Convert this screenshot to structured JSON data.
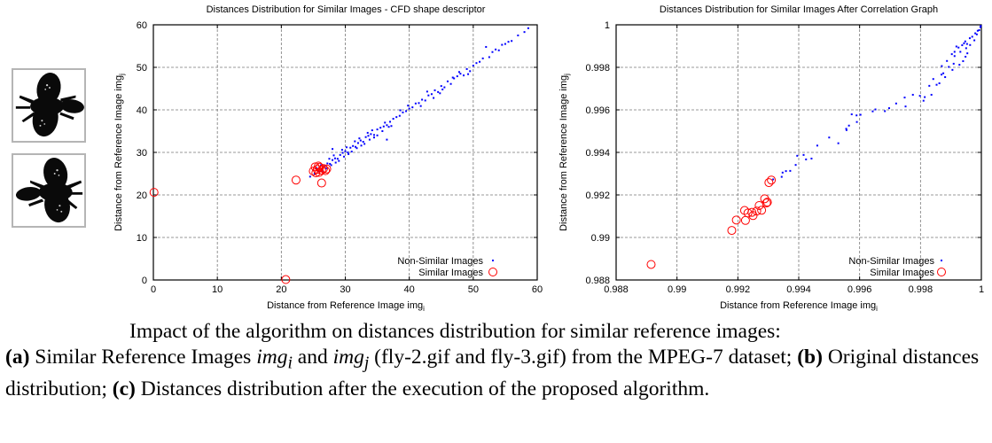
{
  "thumbnails": [
    {
      "label": "fly-2.gif",
      "icon": "fly-silhouette-icon"
    },
    {
      "label": "fly-3.gif",
      "icon": "fly-silhouette-icon"
    }
  ],
  "caption": {
    "line1": "Impact of the algorithm on distances distribution for similar reference images:",
    "a_tag": "(a)",
    "a_text_1": " Similar Reference Images ",
    "img_i": "img",
    "sub_i": "i",
    "and": " and ",
    "img_j": "img",
    "sub_j": "j",
    "a_text_2": " (fly-2.gif and fly-3.gif) from the MPEG-7 dataset; ",
    "b_tag": "(b)",
    "b_text": " Original distances distribution; ",
    "c_tag": "(c)",
    "c_text": " Distances distribution after the execution of the proposed algorithm."
  },
  "chart_data": [
    {
      "type": "scatter",
      "title": "Distances Distribution for Similar Images - CFD shape descriptor",
      "xlabel": "Distance from Reference Image img",
      "xlabel_sub": "i",
      "ylabel": "Distance from Reference Image img",
      "ylabel_sub": "j",
      "xlim": [
        0,
        60
      ],
      "ylim": [
        0,
        60
      ],
      "xticks": [
        "0",
        "10",
        "20",
        "30",
        "40",
        "50",
        "60"
      ],
      "yticks": [
        "0",
        "10",
        "20",
        "30",
        "40",
        "50",
        "60"
      ],
      "xtick_values": [
        0,
        10,
        20,
        30,
        40,
        50,
        60
      ],
      "ytick_values": [
        0,
        10,
        20,
        30,
        40,
        50,
        60
      ],
      "grid": true,
      "legend_position": "bottom-right",
      "series": [
        {
          "name": "Non-Similar Images",
          "marker": "dot",
          "color": "#0000ff",
          "points": [
            [
              24.5,
              24.3
            ],
            [
              25.2,
              25.0
            ],
            [
              25.8,
              25.6
            ],
            [
              26.3,
              26.0
            ],
            [
              26.8,
              26.9
            ],
            [
              27.2,
              27.4
            ],
            [
              27.6,
              27.3
            ],
            [
              28.0,
              28.2
            ],
            [
              28.4,
              28.6
            ],
            [
              28.8,
              28.5
            ],
            [
              29.2,
              29.4
            ],
            [
              29.6,
              29.9
            ],
            [
              30.0,
              30.3
            ],
            [
              30.4,
              30.0
            ],
            [
              30.8,
              31.1
            ],
            [
              31.2,
              31.5
            ],
            [
              31.6,
              31.3
            ],
            [
              32.0,
              32.2
            ],
            [
              32.4,
              32.8
            ],
            [
              32.8,
              32.5
            ],
            [
              33.2,
              33.6
            ],
            [
              33.6,
              33.9
            ],
            [
              34.0,
              34.3
            ],
            [
              34.5,
              34.1
            ],
            [
              35.0,
              35.4
            ],
            [
              35.5,
              35.8
            ],
            [
              36.0,
              36.1
            ],
            [
              36.5,
              36.4
            ],
            [
              37.0,
              37.2
            ],
            [
              37.5,
              37.9
            ],
            [
              26.2,
              27.0
            ],
            [
              27.0,
              26.2
            ],
            [
              28.2,
              29.3
            ],
            [
              29.0,
              28.0
            ],
            [
              30.2,
              31.2
            ],
            [
              31.0,
              30.2
            ],
            [
              32.2,
              33.3
            ],
            [
              33.0,
              32.0
            ],
            [
              34.2,
              35.2
            ],
            [
              35.0,
              34.0
            ],
            [
              27.5,
              28.5
            ],
            [
              28.5,
              27.6
            ],
            [
              29.5,
              30.6
            ],
            [
              30.5,
              29.6
            ],
            [
              31.5,
              32.6
            ],
            [
              32.5,
              31.6
            ],
            [
              33.5,
              34.6
            ],
            [
              34.5,
              33.5
            ],
            [
              36.2,
              37.0
            ],
            [
              37.2,
              36.2
            ],
            [
              25.5,
              26.3
            ],
            [
              26.5,
              25.6
            ],
            [
              27.8,
              27.0
            ],
            [
              29.8,
              29.0
            ],
            [
              31.8,
              31.0
            ],
            [
              33.8,
              33.0
            ],
            [
              35.8,
              35.0
            ],
            [
              36.8,
              36.0
            ],
            [
              28.0,
              30.8
            ],
            [
              36.5,
              33.0
            ],
            [
              38.0,
              38.3
            ],
            [
              38.5,
              38.6
            ],
            [
              39.0,
              39.4
            ],
            [
              39.5,
              39.7
            ],
            [
              40.0,
              40.3
            ],
            [
              40.5,
              40.6
            ],
            [
              41.0,
              41.5
            ],
            [
              41.5,
              41.6
            ],
            [
              42.0,
              42.4
            ],
            [
              42.5,
              42.2
            ],
            [
              43.0,
              43.4
            ],
            [
              43.5,
              43.7
            ],
            [
              44.0,
              44.6
            ],
            [
              44.5,
              44.2
            ],
            [
              45.0,
              45.6
            ],
            [
              45.5,
              45.3
            ],
            [
              46.0,
              46.7
            ],
            [
              46.5,
              46.1
            ],
            [
              47.0,
              47.4
            ],
            [
              47.5,
              47.9
            ],
            [
              48.0,
              48.5
            ],
            [
              48.5,
              48.1
            ],
            [
              49.0,
              49.6
            ],
            [
              49.5,
              49.1
            ],
            [
              50.0,
              50.4
            ],
            [
              50.5,
              51.0
            ],
            [
              51.0,
              51.3
            ],
            [
              51.5,
              52.1
            ],
            [
              52.5,
              52.4
            ],
            [
              53.0,
              53.6
            ],
            [
              53.5,
              54.2
            ],
            [
              54.0,
              54.0
            ],
            [
              54.5,
              55.3
            ],
            [
              55.0,
              55.5
            ],
            [
              55.5,
              56.0
            ],
            [
              56.0,
              56.2
            ],
            [
              57.0,
              57.5
            ],
            [
              58.0,
              58.3
            ],
            [
              58.6,
              59.2
            ],
            [
              52.0,
              54.8
            ],
            [
              39.8,
              41.0
            ],
            [
              42.8,
              44.3
            ],
            [
              44.8,
              43.9
            ],
            [
              46.8,
              47.6
            ],
            [
              49.2,
              48.4
            ],
            [
              45.2,
              44.8
            ],
            [
              47.8,
              48.9
            ],
            [
              41.8,
              40.9
            ],
            [
              38.6,
              39.9
            ],
            [
              43.8,
              42.8
            ]
          ]
        },
        {
          "name": "Similar Images",
          "marker": "circle",
          "color": "#ff0000",
          "points": [
            [
              0.1,
              20.6
            ],
            [
              20.7,
              0.1
            ],
            [
              22.3,
              23.5
            ],
            [
              26.3,
              22.8
            ],
            [
              25.0,
              25.6
            ],
            [
              25.3,
              26.6
            ],
            [
              25.6,
              26.0
            ],
            [
              25.9,
              25.3
            ],
            [
              26.0,
              26.5
            ],
            [
              26.3,
              25.8
            ],
            [
              26.6,
              26.2
            ],
            [
              25.4,
              25.2
            ],
            [
              25.8,
              26.8
            ],
            [
              26.9,
              25.7
            ],
            [
              27.1,
              26.1
            ]
          ]
        }
      ]
    },
    {
      "type": "scatter",
      "title": "Distances Distribution for Similar Images After Correlation Graph",
      "xlabel": "Distance from Reference Image img",
      "xlabel_sub": "i",
      "ylabel": "Distance from Reference Image img",
      "ylabel_sub": "j",
      "xlim": [
        0.988,
        1.0
      ],
      "ylim": [
        0.988,
        1.0
      ],
      "xticks": [
        "0.988",
        "0.99",
        "0.992",
        "0.994",
        "0.996",
        "0.998",
        "1"
      ],
      "yticks": [
        "0.988",
        "0.99",
        "0.992",
        "0.994",
        "0.996",
        "0.998",
        "1"
      ],
      "xtick_values": [
        0.988,
        0.99,
        0.992,
        0.994,
        0.996,
        0.998,
        1.0
      ],
      "ytick_values": [
        0.988,
        0.99,
        0.992,
        0.994,
        0.996,
        0.998,
        1.0
      ],
      "grid": true,
      "legend_position": "bottom-right",
      "series": [
        {
          "name": "Non-Similar Images",
          "marker": "dot",
          "color": "#0000ff",
          "points": [
            [
              0.99316,
              0.99273
            ],
            [
              0.99344,
              0.99285
            ],
            [
              0.99347,
              0.99305
            ],
            [
              0.99358,
              0.99312
            ],
            [
              0.99372,
              0.99313
            ],
            [
              0.9939,
              0.99341
            ],
            [
              0.99416,
              0.99388
            ],
            [
              0.99395,
              0.99384
            ],
            [
              0.99424,
              0.99367
            ],
            [
              0.99442,
              0.99371
            ],
            [
              0.99461,
              0.99432
            ],
            [
              0.995,
              0.9947
            ],
            [
              0.9953,
              0.99443
            ],
            [
              0.99557,
              0.99505
            ],
            [
              0.99556,
              0.99511
            ],
            [
              0.99565,
              0.99526
            ],
            [
              0.99591,
              0.99543
            ],
            [
              0.99574,
              0.99579
            ],
            [
              0.99603,
              0.99577
            ],
            [
              0.99643,
              0.99593
            ],
            [
              0.9959,
              0.99574
            ],
            [
              0.99652,
              0.99602
            ],
            [
              0.99683,
              0.99594
            ],
            [
              0.99697,
              0.99608
            ],
            [
              0.9972,
              0.9963
            ],
            [
              0.99751,
              0.99616
            ],
            [
              0.99748,
              0.99658
            ],
            [
              0.99775,
              0.99671
            ],
            [
              0.9981,
              0.99643
            ],
            [
              0.99814,
              0.9966
            ],
            [
              0.99798,
              0.99666
            ],
            [
              0.99836,
              0.99671
            ],
            [
              0.99853,
              0.99718
            ],
            [
              0.99862,
              0.99725
            ],
            [
              0.99881,
              0.99754
            ],
            [
              0.99842,
              0.99745
            ],
            [
              0.99869,
              0.99766
            ],
            [
              0.99905,
              0.99788
            ],
            [
              0.9994,
              0.99829
            ],
            [
              0.99928,
              0.99812
            ],
            [
              0.99954,
              0.99866
            ],
            [
              0.99931,
              0.99873
            ],
            [
              0.99953,
              0.9991
            ],
            [
              0.99963,
              0.99905
            ],
            [
              0.99977,
              0.99927
            ],
            [
              0.99985,
              0.99955
            ],
            [
              0.99993,
              0.99975
            ],
            [
              0.99997,
              0.9999
            ],
            [
              0.99998,
              0.99995
            ],
            [
              0.99997,
              0.99989
            ],
            [
              0.99937,
              0.99904
            ],
            [
              0.99947,
              0.99922
            ],
            [
              0.99962,
              0.99937
            ],
            [
              0.99943,
              0.99913
            ],
            [
              0.9995,
              0.9989
            ],
            [
              0.99925,
              0.99893
            ],
            [
              0.9997,
              0.99944
            ],
            [
              0.9998,
              0.9996
            ],
            [
              0.99988,
              0.99972
            ],
            [
              0.99918,
              0.99898
            ],
            [
              0.99829,
              0.99713
            ],
            [
              0.99875,
              0.99772
            ],
            [
              0.99893,
              0.99802
            ],
            [
              0.9987,
              0.99806
            ],
            [
              0.99887,
              0.9983
            ],
            [
              0.99909,
              0.99817
            ],
            [
              0.99948,
              0.9985
            ],
            [
              0.99903,
              0.99862
            ],
            [
              0.99912,
              0.99853
            ],
            [
              0.99912,
              0.99873
            ]
          ]
        },
        {
          "name": "Similar Images",
          "marker": "circle",
          "color": "#ff0000",
          "points": [
            [
              0.98915,
              0.98873
            ],
            [
              0.9918,
              0.99033
            ],
            [
              0.99195,
              0.99082
            ],
            [
              0.99222,
              0.99127
            ],
            [
              0.99225,
              0.9908
            ],
            [
              0.99233,
              0.99115
            ],
            [
              0.99246,
              0.99118
            ],
            [
              0.9925,
              0.99103
            ],
            [
              0.99262,
              0.99124
            ],
            [
              0.9927,
              0.9915
            ],
            [
              0.99278,
              0.99128
            ],
            [
              0.99288,
              0.99182
            ],
            [
              0.99294,
              0.99162
            ],
            [
              0.99297,
              0.99166
            ],
            [
              0.99302,
              0.99258
            ],
            [
              0.9931,
              0.9927
            ]
          ]
        }
      ]
    }
  ]
}
